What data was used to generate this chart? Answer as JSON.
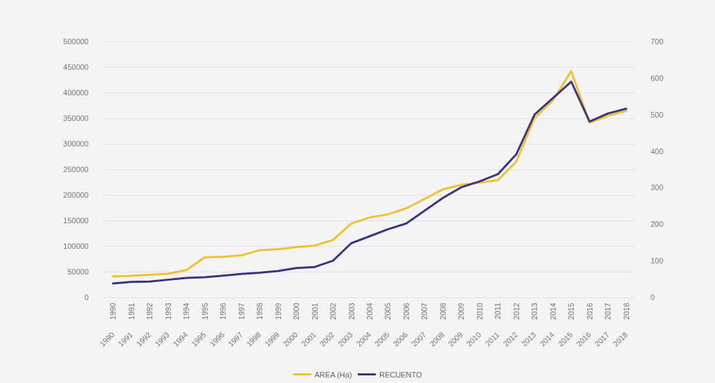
{
  "chart_data": {
    "type": "line",
    "categories": [
      "1990",
      "1991",
      "1992",
      "1993",
      "1994",
      "1995",
      "1996",
      "1997",
      "1998",
      "1999",
      "2000",
      "2001",
      "2002",
      "2003",
      "2004",
      "2005",
      "2006",
      "2007",
      "2008",
      "2009",
      "2010",
      "2011",
      "2012",
      "2013",
      "2014",
      "2015",
      "2016",
      "2017",
      "2018"
    ],
    "series": [
      {
        "name": "AREA (Ha)",
        "color": "#f2c12e",
        "values": [
          41000,
          42000,
          44000,
          46000,
          53000,
          78000,
          79000,
          82000,
          92000,
          94000,
          98000,
          101000,
          112000,
          144000,
          156000,
          162000,
          174000,
          192000,
          211000,
          220000,
          224000,
          229000,
          265000,
          350000,
          385000,
          442000,
          341000,
          355000,
          364000
        ]
      },
      {
        "name": "RECUENTO",
        "color": "#3d3480",
        "axis": "y2",
        "values": [
          38,
          42,
          43,
          48,
          53,
          55,
          59,
          64,
          67,
          72,
          80,
          83,
          100,
          148,
          167,
          186,
          202,
          237,
          272,
          301,
          317,
          337,
          391,
          500,
          545,
          590,
          481,
          503,
          516
        ]
      }
    ],
    "ylim": [
      0,
      500000
    ],
    "yticks": [
      0,
      50000,
      100000,
      150000,
      200000,
      250000,
      300000,
      350000,
      400000,
      450000,
      500000
    ],
    "y2lim": [
      0,
      700
    ],
    "y2ticks": [
      0,
      100,
      200,
      300,
      400,
      500,
      600,
      700
    ],
    "grid": "y",
    "legend": "bottom",
    "marker": "none",
    "line_style": "solid"
  }
}
